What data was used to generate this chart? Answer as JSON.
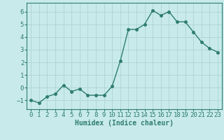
{
  "x": [
    0,
    1,
    2,
    3,
    4,
    5,
    6,
    7,
    8,
    9,
    10,
    11,
    12,
    13,
    14,
    15,
    16,
    17,
    18,
    19,
    20,
    21,
    22,
    23
  ],
  "y": [
    -1.0,
    -1.2,
    -0.7,
    -0.5,
    0.2,
    -0.3,
    -0.1,
    -0.6,
    -0.6,
    -0.6,
    0.1,
    2.1,
    4.6,
    4.6,
    5.0,
    6.1,
    5.7,
    6.0,
    5.2,
    5.2,
    4.4,
    3.6,
    3.1,
    2.8
  ],
  "line_color": "#2e7d6e",
  "bg_color": "#c8eaea",
  "grid_color": "#aed4d4",
  "xlabel": "Humidex (Indice chaleur)",
  "ylim": [
    -1.7,
    6.7
  ],
  "xlim": [
    -0.5,
    23.5
  ],
  "yticks": [
    -1,
    0,
    1,
    2,
    3,
    4,
    5,
    6
  ],
  "xticks": [
    0,
    1,
    2,
    3,
    4,
    5,
    6,
    7,
    8,
    9,
    10,
    11,
    12,
    13,
    14,
    15,
    16,
    17,
    18,
    19,
    20,
    21,
    22,
    23
  ],
  "xlabel_fontsize": 7,
  "tick_fontsize": 6.5,
  "marker": "o",
  "marker_size": 2.5,
  "line_width": 1.0
}
